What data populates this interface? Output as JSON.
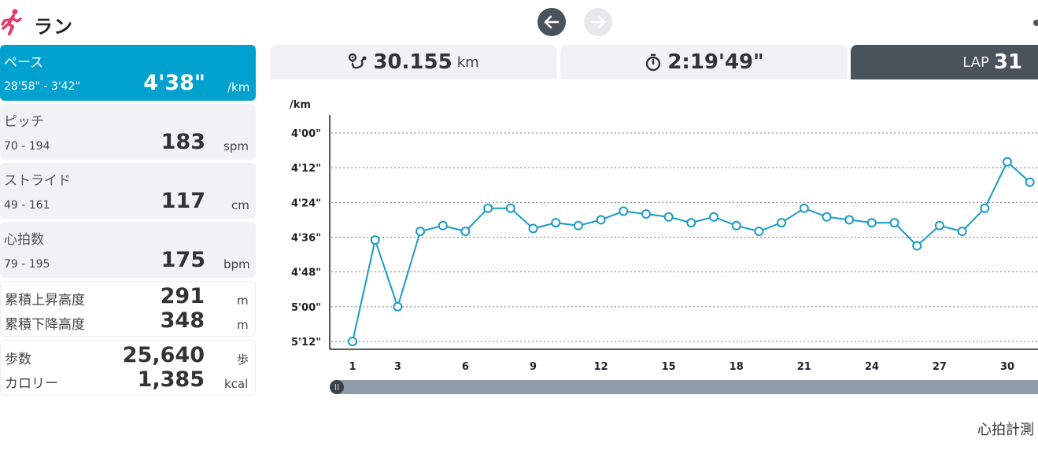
{
  "header": {
    "title": "ラン",
    "icon": "running-person-icon",
    "accent_color": "#e8386a"
  },
  "nav": {
    "prev_icon": "arrow-left-icon",
    "next_icon": "arrow-right-icon"
  },
  "metrics": {
    "pace": {
      "label": "ペース",
      "range": "28'58\" - 3'42\"",
      "value": "4'38\"",
      "unit": "/km"
    },
    "pitch": {
      "label": "ピッチ",
      "range": "70 - 194",
      "value": "183",
      "unit": "spm"
    },
    "stride": {
      "label": "ストライド",
      "range": "49 - 161",
      "value": "117",
      "unit": "cm"
    },
    "heart_rate": {
      "label": "心拍数",
      "range": "79 - 195",
      "value": "175",
      "unit": "bpm"
    },
    "elevation": {
      "ascent_label": "累積上昇高度",
      "ascent_value": "291",
      "ascent_unit": "m",
      "descent_label": "累積下降高度",
      "descent_value": "348",
      "descent_unit": "m"
    },
    "steps": {
      "steps_label": "歩数",
      "steps_value": "25,640",
      "steps_unit": "歩",
      "calories_label": "カロリー",
      "calories_value": "1,385",
      "calories_unit": "kcal"
    }
  },
  "summary": {
    "distance_icon": "route-icon",
    "distance_value": "30.155",
    "distance_unit": "km",
    "time_icon": "stopwatch-icon",
    "time_value": "2:19'49\"",
    "lap_label": "LAP",
    "lap_value": "31"
  },
  "chart_data": {
    "type": "line",
    "ylabel": "/km",
    "y_ticks": [
      "4'00\"",
      "4'12\"",
      "4'24\"",
      "4'36\"",
      "4'48\"",
      "5'00\"",
      "5'12\""
    ],
    "y_ticks_seconds": [
      240,
      252,
      264,
      276,
      288,
      300,
      312
    ],
    "y_inverted": true,
    "x_ticks": [
      1,
      3,
      6,
      9,
      12,
      15,
      18,
      21,
      24,
      27,
      30
    ],
    "x_range": [
      1,
      31
    ],
    "grid": "dashed horizontal",
    "line_color": "#1a9ac6",
    "series": [
      {
        "x": [
          1,
          2,
          3,
          4,
          5,
          6,
          7,
          8,
          9,
          10,
          11,
          12,
          13,
          14,
          15,
          16,
          17,
          18,
          19,
          20,
          21,
          22,
          23,
          24,
          25,
          26,
          27,
          28,
          29,
          30,
          31
        ],
        "y": [
          312,
          277,
          300,
          274,
          272,
          274,
          266,
          266,
          273,
          271,
          272,
          270,
          267,
          268,
          269,
          271,
          269,
          272,
          274,
          271,
          266,
          269,
          270,
          271,
          271,
          279,
          272,
          274,
          266,
          250,
          257
        ]
      }
    ]
  },
  "footer": {
    "note": "心拍計測"
  }
}
